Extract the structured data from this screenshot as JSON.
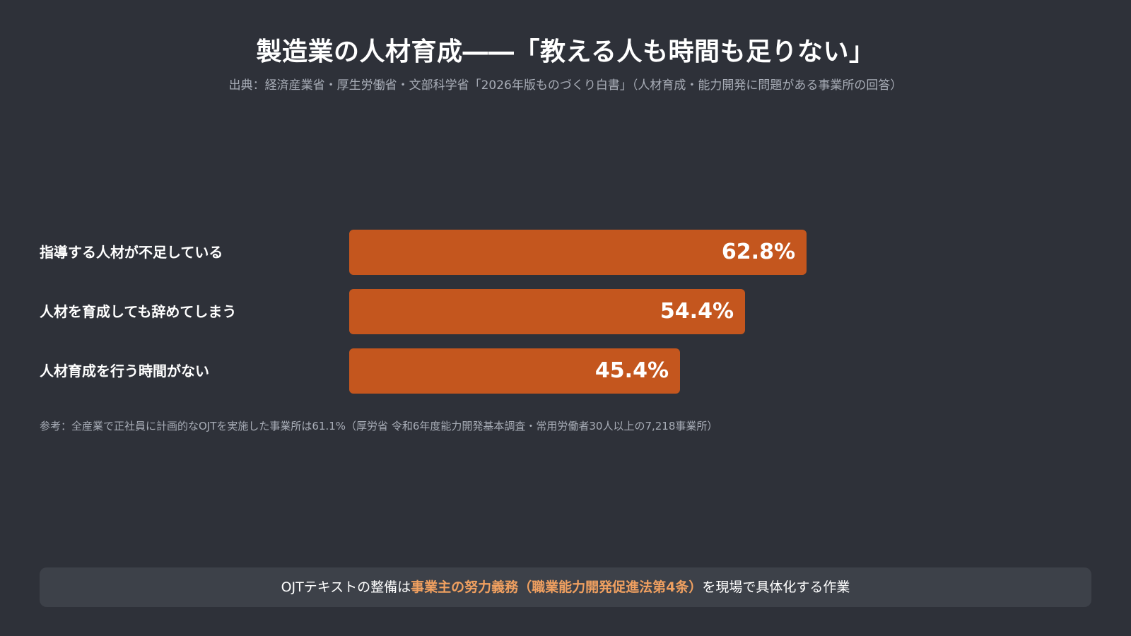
{
  "header": {
    "title": "製造業の人材育成――「教える人も時間も足りない」",
    "subtitle": "出典：経済産業省・厚生労働省・文部科学省「2026年版ものづくり白書」（人材育成・能力開発に問題がある事業所の回答）"
  },
  "colors": {
    "background": "#2e3139",
    "bar": "#c4561e",
    "highlight": "#f0a060",
    "callout_background": "#3d4149",
    "muted_text": "#a8adb7"
  },
  "chart_data": {
    "type": "bar",
    "orientation": "horizontal",
    "categories": [
      "指導する人材が不足している",
      "人材を育成しても辞めてしまう",
      "人材育成を行う時間がない"
    ],
    "values": [
      62.8,
      54.4,
      45.4
    ],
    "value_labels": [
      "62.8%",
      "54.4%",
      "45.4%"
    ],
    "xlim": [
      0,
      100
    ],
    "grid": false
  },
  "note": "参考：全産業で正社員に計画的なOJTを実施した事業所は61.1%（厚労省 令和6年度能力開発基本調査・常用労働者30人以上の7,218事業所）",
  "callout": {
    "prefix": "OJTテキストの整備は",
    "highlight": "事業主の努力義務（職業能力開発促進法第4条）",
    "suffix": "を現場で具体化する作業"
  }
}
